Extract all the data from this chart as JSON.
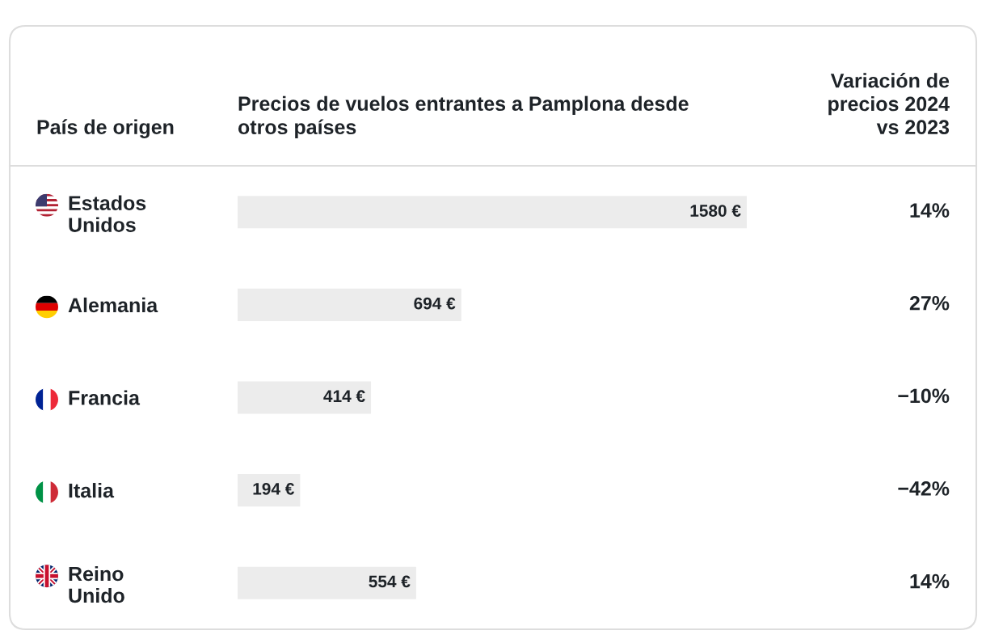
{
  "chart_data": {
    "type": "bar",
    "orientation": "horizontal",
    "title": "Precios de vuelos entrantes a Pamplona desde otros países",
    "ylabel": "País de origen",
    "categories": [
      "Estados Unidos",
      "Alemania",
      "Francia",
      "Italia",
      "Reino Unido"
    ],
    "values": [
      1580,
      694,
      414,
      194,
      554
    ],
    "value_labels": [
      "1580 €",
      "694 €",
      "414 €",
      "194 €",
      "554 €"
    ],
    "color": "#ececec",
    "tick_labels": "y",
    "annotations": [
      "Variación de precios 2024 vs 2023",
      "14%",
      "27%",
      "−10%",
      "−42%",
      "14%"
    ]
  }
}
